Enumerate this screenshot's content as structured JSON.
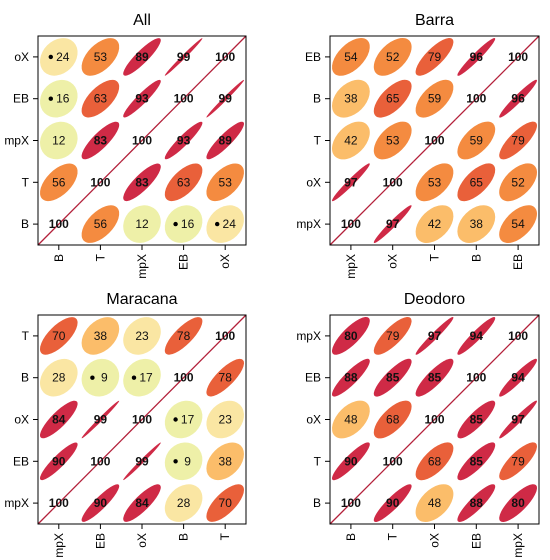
{
  "colors": {
    "very_low": "#eef0a8",
    "low": "#fae6a3",
    "low_mid": "#fbbd6a",
    "mid": "#f48b40",
    "mid_high": "#e9603a",
    "high": "#cf2a46",
    "frame": "#000000",
    "diagonal": "#b3203a"
  },
  "chart_data": [
    {
      "type": "heatmap",
      "title": "All",
      "x_labels": [
        "B",
        "T",
        "mpX",
        "EB",
        "oX"
      ],
      "y_labels_top_to_bottom": [
        "oX",
        "EB",
        "mpX",
        "T",
        "B"
      ],
      "values": [
        [
          100,
          56,
          12,
          16,
          24
        ],
        [
          56,
          100,
          83,
          63,
          53
        ],
        [
          12,
          83,
          100,
          93,
          89
        ],
        [
          16,
          63,
          93,
          100,
          99
        ],
        [
          24,
          53,
          89,
          99,
          100
        ]
      ],
      "marked": [
        [
          0,
          3
        ],
        [
          0,
          4
        ],
        [
          3,
          0
        ],
        [
          4,
          0
        ]
      ]
    },
    {
      "type": "heatmap",
      "title": "Barra",
      "x_labels": [
        "mpX",
        "oX",
        "T",
        "B",
        "EB"
      ],
      "y_labels_top_to_bottom": [
        "EB",
        "B",
        "T",
        "oX",
        "mpX"
      ],
      "values": [
        [
          100,
          97,
          42,
          38,
          54
        ],
        [
          97,
          100,
          53,
          65,
          52
        ],
        [
          42,
          53,
          100,
          59,
          79
        ],
        [
          38,
          65,
          59,
          100,
          96
        ],
        [
          54,
          52,
          79,
          96,
          100
        ]
      ],
      "marked": []
    },
    {
      "type": "heatmap",
      "title": "Maracana",
      "x_labels": [
        "mpX",
        "EB",
        "oX",
        "B",
        "T"
      ],
      "y_labels_top_to_bottom": [
        "T",
        "B",
        "oX",
        "EB",
        "mpX"
      ],
      "values": [
        [
          100,
          90,
          84,
          28,
          70
        ],
        [
          90,
          100,
          99,
          9,
          38
        ],
        [
          84,
          99,
          100,
          17,
          23
        ],
        [
          28,
          9,
          17,
          100,
          78
        ],
        [
          70,
          38,
          23,
          78,
          100
        ]
      ],
      "marked": [
        [
          1,
          3
        ],
        [
          2,
          3
        ],
        [
          3,
          1
        ],
        [
          3,
          2
        ]
      ]
    },
    {
      "type": "heatmap",
      "title": "Deodoro",
      "x_labels": [
        "B",
        "T",
        "oX",
        "EB",
        "mpX"
      ],
      "y_labels_top_to_bottom": [
        "mpX",
        "EB",
        "oX",
        "T",
        "B"
      ],
      "values": [
        [
          100,
          90,
          48,
          88,
          80
        ],
        [
          90,
          100,
          68,
          85,
          79
        ],
        [
          48,
          68,
          100,
          85,
          97
        ],
        [
          88,
          85,
          85,
          100,
          94
        ],
        [
          80,
          79,
          97,
          94,
          100
        ]
      ],
      "marked": []
    }
  ]
}
